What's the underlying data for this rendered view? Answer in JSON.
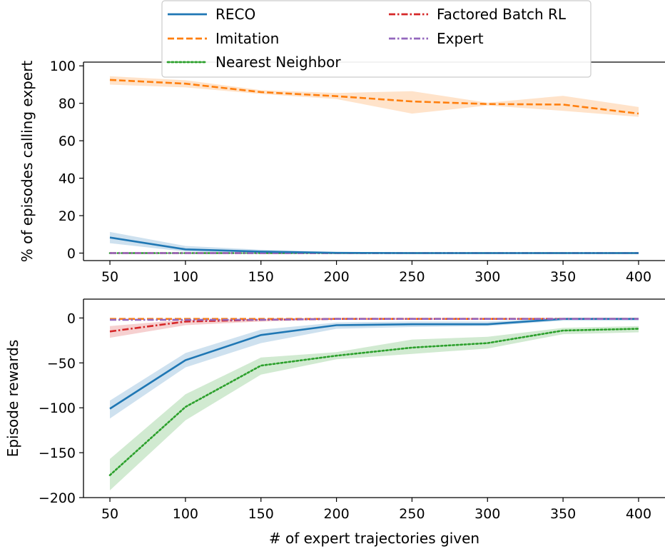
{
  "chart_data": [
    {
      "type": "line",
      "xlabel": "",
      "ylabel": "% of episodes calling expert",
      "x": [
        50,
        100,
        150,
        200,
        250,
        300,
        350,
        400
      ],
      "xticks": [
        "50",
        "100",
        "150",
        "200",
        "250",
        "300",
        "350",
        "400"
      ],
      "yticks": [
        "0",
        "20",
        "40",
        "60",
        "80",
        "100"
      ],
      "ylim": [
        -4,
        102
      ],
      "grid": false,
      "series": [
        {
          "name": "RECO",
          "color": "#1f77b4",
          "style": "solid",
          "values": [
            8.3,
            2.0,
            0.8,
            0.1,
            0,
            0,
            0,
            0
          ],
          "lower": [
            5.3,
            0.8,
            0.2,
            0,
            0,
            0,
            0,
            0
          ],
          "upper": [
            11.3,
            3.8,
            1.8,
            0.6,
            0.3,
            0.3,
            0.3,
            0.3
          ]
        },
        {
          "name": "Imitation",
          "color": "#ff7f0e",
          "style": "dashed",
          "values": [
            92.5,
            90.5,
            86.0,
            83.8,
            81.0,
            79.6,
            79.3,
            74.5
          ],
          "lower": [
            90.0,
            88.5,
            85.0,
            82.3,
            74.5,
            78.8,
            76.0,
            72.8
          ],
          "upper": [
            94.5,
            92.3,
            87.0,
            85.5,
            86.5,
            80.3,
            84.0,
            78.0
          ]
        },
        {
          "name": "Nearest Neighbor",
          "color": "#2ca02c",
          "style": "dotted",
          "values": [
            0,
            0,
            0,
            0,
            0,
            0,
            0,
            0
          ]
        },
        {
          "name": "Factored Batch RL",
          "color": "#d62728",
          "style": "dashdot",
          "values": [
            0,
            0,
            0,
            0,
            0,
            0,
            0,
            0
          ]
        },
        {
          "name": "Expert",
          "color": "#9467bd",
          "style": "dashdot",
          "values": [
            0,
            0,
            0,
            0,
            0,
            0,
            0,
            0
          ]
        }
      ]
    },
    {
      "type": "line",
      "xlabel": "# of expert trajectories given",
      "ylabel": "Episode rewards",
      "x": [
        50,
        100,
        150,
        200,
        250,
        300,
        350,
        400
      ],
      "xticks": [
        "50",
        "100",
        "150",
        "200",
        "250",
        "300",
        "350",
        "400"
      ],
      "yticks": [
        "−200",
        "−150",
        "−100",
        "−50",
        "0"
      ],
      "ylim": [
        -200,
        21
      ],
      "grid": false,
      "series": [
        {
          "name": "RECO",
          "color": "#1f77b4",
          "style": "solid",
          "values": [
            -101,
            -47,
            -19,
            -8,
            -7,
            -7,
            -1,
            -1
          ],
          "lower": [
            -112,
            -55,
            -28,
            -12,
            -10,
            -9,
            -3,
            -3
          ],
          "upper": [
            -92,
            -39,
            -13,
            -5,
            -4,
            -4,
            0,
            0
          ]
        },
        {
          "name": "Imitation",
          "color": "#ff7f0e",
          "style": "dashed",
          "values": [
            -1,
            -1,
            -1,
            -1,
            -1,
            -1,
            -1,
            -1
          ]
        },
        {
          "name": "Nearest Neighbor",
          "color": "#2ca02c",
          "style": "dotted",
          "values": [
            -175,
            -99,
            -53,
            -42,
            -33,
            -28,
            -14,
            -12
          ],
          "lower": [
            -192,
            -114,
            -63,
            -46,
            -40,
            -34,
            -18,
            -16
          ],
          "upper": [
            -157,
            -85,
            -44,
            -38,
            -24,
            -21,
            -11,
            -9
          ]
        },
        {
          "name": "Factored Batch RL",
          "color": "#d62728",
          "style": "dashdot",
          "values": [
            -15,
            -4,
            -2,
            -1,
            -1,
            -1,
            -1,
            -1
          ],
          "lower": [
            -22,
            -8,
            -4,
            -2,
            -2,
            -2,
            -2,
            -2
          ],
          "upper": [
            -9,
            -2,
            -1,
            0,
            0,
            0,
            0,
            0
          ]
        },
        {
          "name": "Expert",
          "color": "#9467bd",
          "style": "dashdot",
          "values": [
            -2,
            -2,
            -2,
            -1,
            -1,
            -1,
            -1,
            -1
          ]
        }
      ]
    }
  ],
  "legend": {
    "placement": "top-center",
    "entries": [
      {
        "label": "RECO",
        "color": "#1f77b4",
        "style": "solid"
      },
      {
        "label": "Imitation",
        "color": "#ff7f0e",
        "style": "dashed"
      },
      {
        "label": "Nearest Neighbor",
        "color": "#2ca02c",
        "style": "dotted"
      },
      {
        "label": "Factored Batch RL",
        "color": "#d62728",
        "style": "dashdot"
      },
      {
        "label": "Expert",
        "color": "#9467bd",
        "style": "dashdot"
      }
    ]
  }
}
